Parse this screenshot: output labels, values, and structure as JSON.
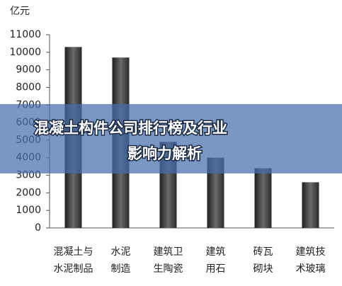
{
  "chart_data": {
    "type": "bar",
    "title": [
      "混凝土构件公司排行榜及行业",
      "影响力解析"
    ],
    "y_label": "亿元",
    "categories": [
      [
        "混凝土与",
        "水泥制品"
      ],
      [
        "水泥",
        "制造"
      ],
      [
        "建筑卫",
        "生陶瓷"
      ],
      [
        "建筑",
        "用石"
      ],
      [
        "砖瓦",
        "砌块"
      ],
      [
        "建筑技",
        "术玻璃"
      ]
    ],
    "values": [
      10300,
      9700,
      4900,
      4000,
      3400,
      2600
    ],
    "color": "#3c3c3c",
    "ylim": [
      0,
      11000
    ],
    "yticks": [
      0,
      1000,
      2000,
      3000,
      4000,
      5000,
      6000,
      7000,
      8000,
      9000,
      10000,
      11000
    ]
  }
}
